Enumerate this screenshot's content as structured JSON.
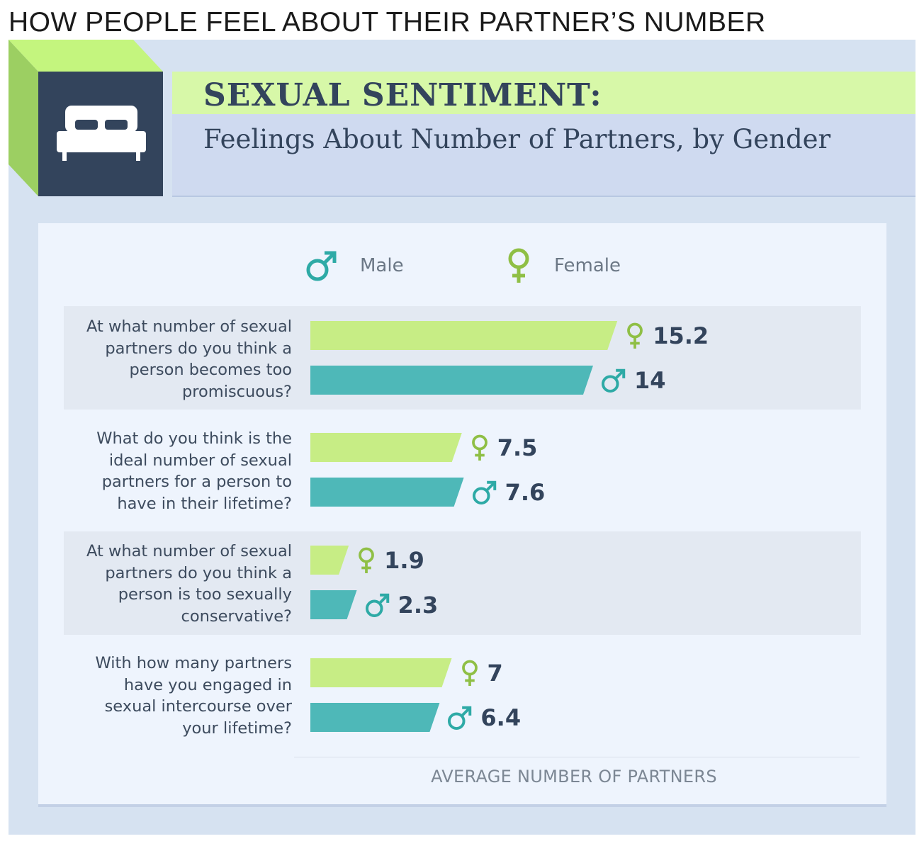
{
  "page_heading": "HOW PEOPLE FEEL ABOUT THEIR PARTNER’S NUMBER",
  "header": {
    "title": "SEXUAL SENTIMENT:",
    "subtitle": "Feelings About Number of Partners, by Gender",
    "icon": "bed-icon"
  },
  "colors": {
    "female": "#c7ed85",
    "male": "#4eb8b8",
    "female_symbol": "#8fbf45",
    "male_symbol": "#2eaaa6",
    "value_text": "#33445c"
  },
  "chart_data": {
    "type": "bar",
    "orientation": "horizontal",
    "title": "",
    "xlabel": "AVERAGE NUMBER OF PARTNERS",
    "ylabel": "",
    "xlim": [
      0,
      16
    ],
    "grid": false,
    "legend": [
      {
        "name": "Male",
        "icon": "male-symbol-icon"
      },
      {
        "name": "Female",
        "icon": "female-symbol-icon"
      }
    ],
    "legend_placement": "top-center",
    "categories": [
      "At what number of sexual partners do you think a person becomes too promiscuous?",
      "What do you think is the ideal number of sexual partners for a person to have in their lifetime?",
      "At what number of sexual partners do you think a person is too sexually conservative?",
      "With how many partners have you engaged in sexual intercourse over your lifetime?"
    ],
    "series": [
      {
        "name": "Female",
        "values": [
          15.2,
          7.5,
          1.9,
          7
        ]
      },
      {
        "name": "Male",
        "values": [
          14,
          7.6,
          2.3,
          6.4
        ]
      }
    ]
  }
}
